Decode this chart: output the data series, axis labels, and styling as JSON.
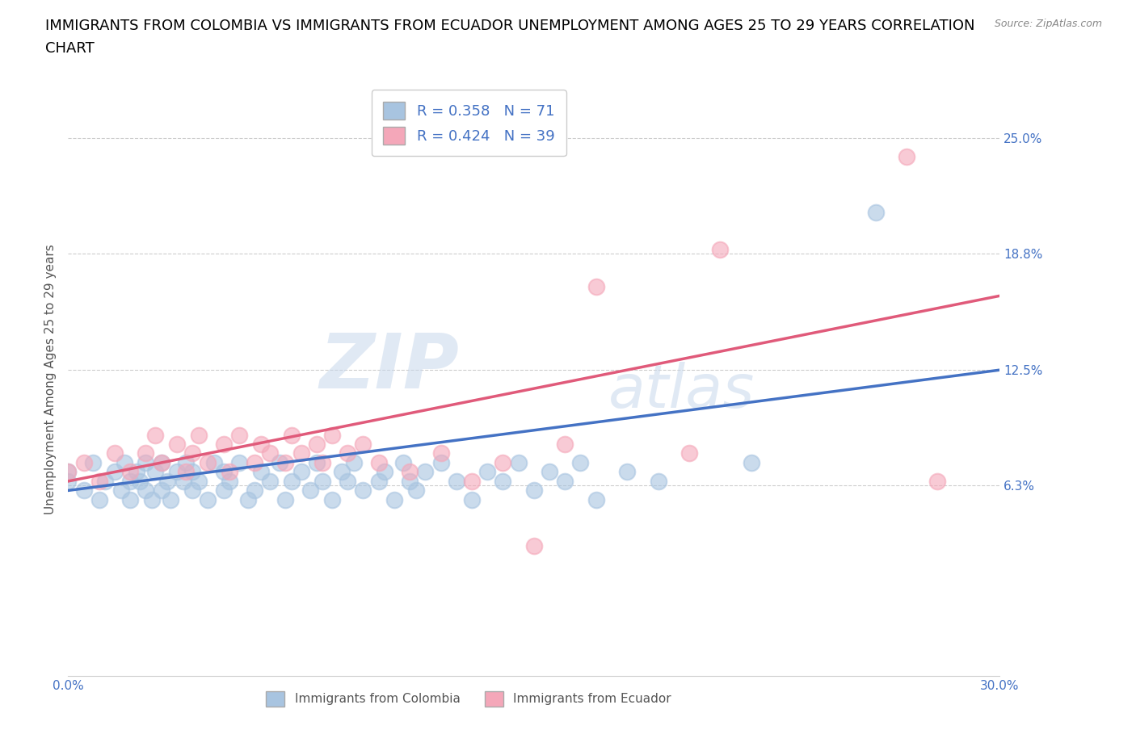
{
  "title_line1": "IMMIGRANTS FROM COLOMBIA VS IMMIGRANTS FROM ECUADOR UNEMPLOYMENT AMONG AGES 25 TO 29 YEARS CORRELATION",
  "title_line2": "CHART",
  "source_text": "Source: ZipAtlas.com",
  "ylabel": "Unemployment Among Ages 25 to 29 years",
  "xlim": [
    0.0,
    0.3
  ],
  "ylim": [
    -0.04,
    0.28
  ],
  "yticks": [
    0.063,
    0.125,
    0.188,
    0.25
  ],
  "ytick_labels": [
    "6.3%",
    "12.5%",
    "18.8%",
    "25.0%"
  ],
  "xticks": [
    0.0,
    0.3
  ],
  "xtick_labels": [
    "0.0%",
    "30.0%"
  ],
  "colombia_color": "#a8c4e0",
  "ecuador_color": "#f4a7b9",
  "colombia_line_color": "#4472c4",
  "ecuador_line_color": "#e05a7a",
  "colombia_R": 0.358,
  "colombia_N": 71,
  "ecuador_R": 0.424,
  "ecuador_N": 39,
  "watermark_zip": "ZIP",
  "watermark_atlas": "atlas",
  "legend_label_colombia": "Immigrants from Colombia",
  "legend_label_ecuador": "Immigrants from Ecuador",
  "colombia_scatter_x": [
    0.0,
    0.0,
    0.005,
    0.008,
    0.01,
    0.012,
    0.015,
    0.017,
    0.018,
    0.02,
    0.02,
    0.022,
    0.023,
    0.025,
    0.025,
    0.027,
    0.028,
    0.03,
    0.03,
    0.032,
    0.033,
    0.035,
    0.037,
    0.038,
    0.04,
    0.04,
    0.042,
    0.045,
    0.047,
    0.05,
    0.05,
    0.052,
    0.055,
    0.058,
    0.06,
    0.062,
    0.065,
    0.068,
    0.07,
    0.072,
    0.075,
    0.078,
    0.08,
    0.082,
    0.085,
    0.088,
    0.09,
    0.092,
    0.095,
    0.1,
    0.102,
    0.105,
    0.108,
    0.11,
    0.112,
    0.115,
    0.12,
    0.125,
    0.13,
    0.135,
    0.14,
    0.145,
    0.15,
    0.155,
    0.16,
    0.165,
    0.17,
    0.18,
    0.19,
    0.22,
    0.26
  ],
  "colombia_scatter_y": [
    0.065,
    0.07,
    0.06,
    0.075,
    0.055,
    0.065,
    0.07,
    0.06,
    0.075,
    0.055,
    0.065,
    0.07,
    0.065,
    0.06,
    0.075,
    0.055,
    0.07,
    0.06,
    0.075,
    0.065,
    0.055,
    0.07,
    0.065,
    0.075,
    0.06,
    0.07,
    0.065,
    0.055,
    0.075,
    0.06,
    0.07,
    0.065,
    0.075,
    0.055,
    0.06,
    0.07,
    0.065,
    0.075,
    0.055,
    0.065,
    0.07,
    0.06,
    0.075,
    0.065,
    0.055,
    0.07,
    0.065,
    0.075,
    0.06,
    0.065,
    0.07,
    0.055,
    0.075,
    0.065,
    0.06,
    0.07,
    0.075,
    0.065,
    0.055,
    0.07,
    0.065,
    0.075,
    0.06,
    0.07,
    0.065,
    0.075,
    0.055,
    0.07,
    0.065,
    0.075,
    0.21
  ],
  "ecuador_scatter_x": [
    0.0,
    0.005,
    0.01,
    0.015,
    0.02,
    0.025,
    0.028,
    0.03,
    0.035,
    0.038,
    0.04,
    0.042,
    0.045,
    0.05,
    0.052,
    0.055,
    0.06,
    0.062,
    0.065,
    0.07,
    0.072,
    0.075,
    0.08,
    0.082,
    0.085,
    0.09,
    0.095,
    0.1,
    0.11,
    0.12,
    0.13,
    0.14,
    0.15,
    0.16,
    0.17,
    0.2,
    0.21,
    0.27,
    0.28
  ],
  "ecuador_scatter_y": [
    0.07,
    0.075,
    0.065,
    0.08,
    0.07,
    0.08,
    0.09,
    0.075,
    0.085,
    0.07,
    0.08,
    0.09,
    0.075,
    0.085,
    0.07,
    0.09,
    0.075,
    0.085,
    0.08,
    0.075,
    0.09,
    0.08,
    0.085,
    0.075,
    0.09,
    0.08,
    0.085,
    0.075,
    0.07,
    0.08,
    0.065,
    0.075,
    0.03,
    0.085,
    0.17,
    0.08,
    0.19,
    0.24,
    0.065
  ],
  "colombia_trend_x": [
    0.0,
    0.3
  ],
  "colombia_trend_y": [
    0.06,
    0.125
  ],
  "ecuador_trend_x": [
    0.0,
    0.3
  ],
  "ecuador_trend_y": [
    0.065,
    0.165
  ],
  "grid_color": "#cccccc",
  "bg_color": "#ffffff",
  "title_fontsize": 13,
  "axis_label_fontsize": 11,
  "tick_fontsize": 11,
  "scatter_size": 200
}
